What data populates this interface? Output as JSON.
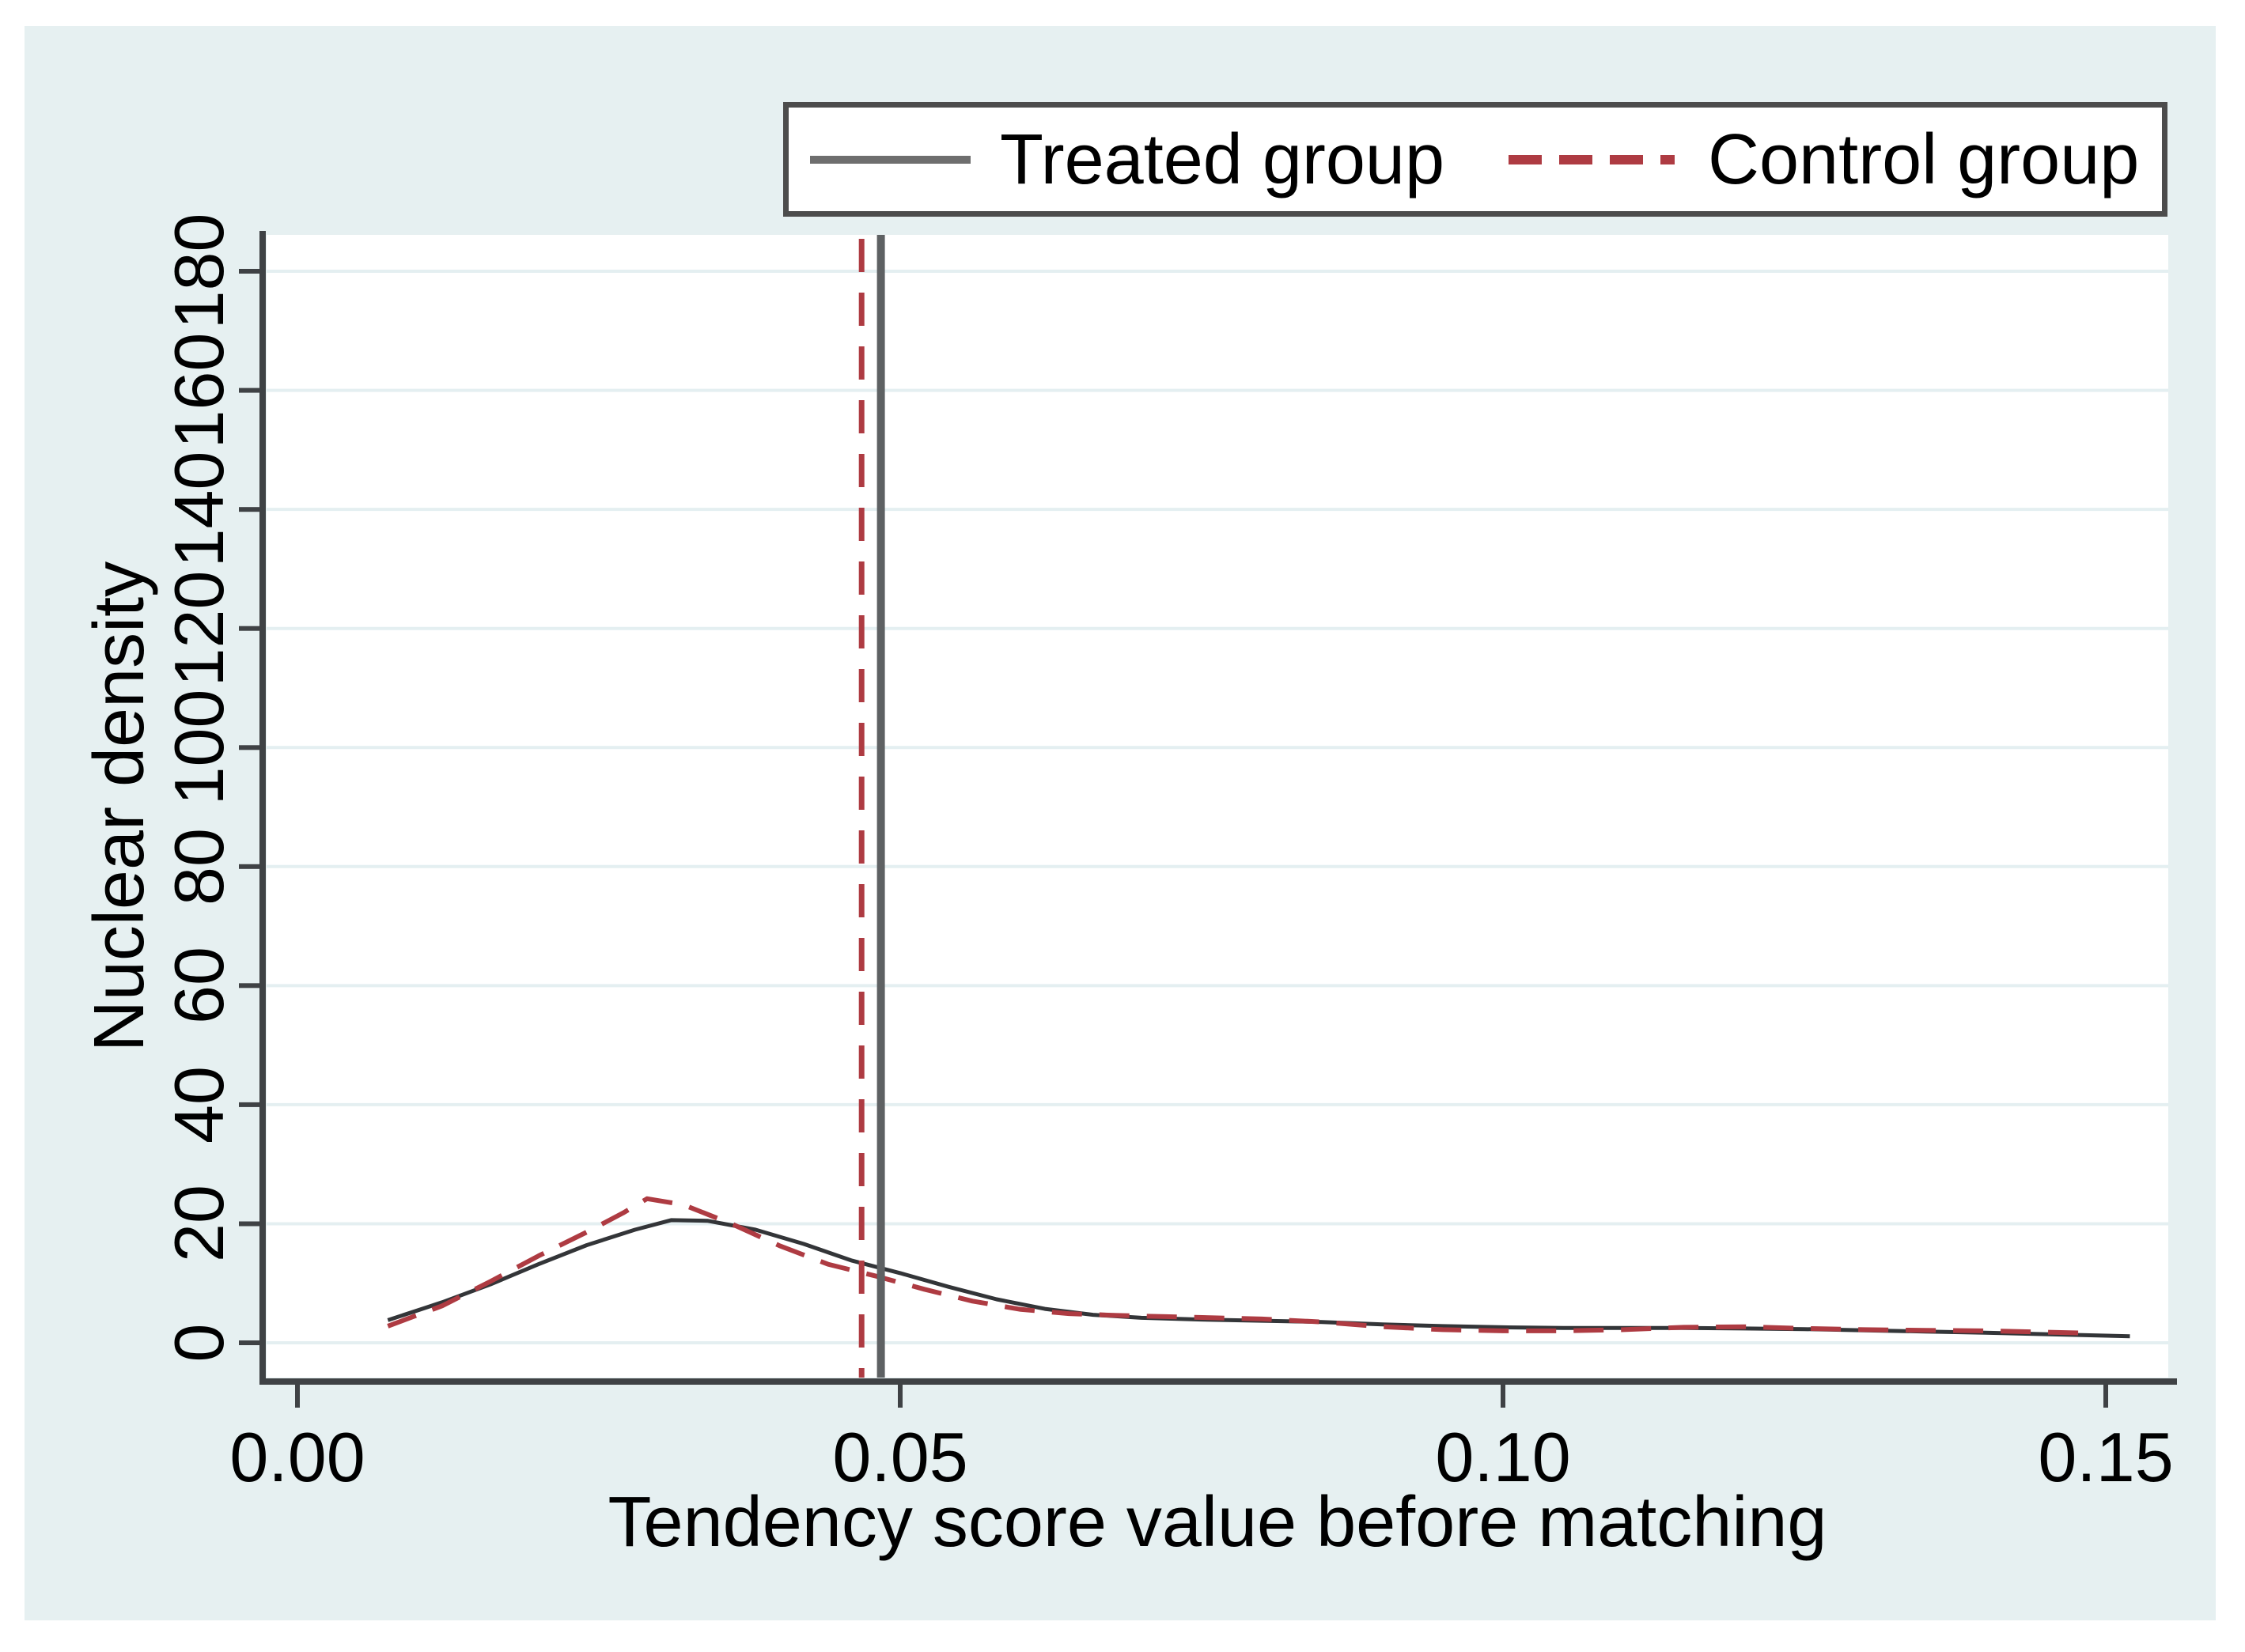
{
  "legend": {
    "items": [
      {
        "label": "Treated group",
        "line": "solid",
        "color": "#6e6e6e"
      },
      {
        "label": "Control group",
        "line": "dashed",
        "color": "#ae3b42"
      }
    ]
  },
  "colors": {
    "canvas_bg": "#e6f0f1",
    "plot_bg": "#ffffff",
    "axis": "#3f4245",
    "grid": "#e4eff1",
    "text": "#000000",
    "legend_border": "#4c4c4c"
  },
  "chart_data": {
    "type": "line",
    "title": "",
    "xlabel": "Tendency score value before matching",
    "ylabel": "Nuclear density",
    "xlim": [
      0,
      0.156
    ],
    "ylim": [
      0,
      186
    ],
    "grid": "horizontal",
    "legend_position": "top",
    "x_ticks": [
      0,
      0.05,
      0.1,
      0.15
    ],
    "x_tick_labels": [
      "0.00",
      "0.05",
      "0.10",
      "0.15"
    ],
    "y_ticks": [
      0,
      20,
      40,
      60,
      80,
      100,
      120,
      140,
      160,
      180
    ],
    "series": [
      {
        "name": "Treated group",
        "style": "solid",
        "color": "#333538",
        "x": [
          0.0075,
          0.012,
          0.016,
          0.02,
          0.024,
          0.028,
          0.031,
          0.034,
          0.038,
          0.042,
          0.046,
          0.05,
          0.054,
          0.058,
          0.062,
          0.066,
          0.07,
          0.075,
          0.08,
          0.085,
          0.09,
          0.095,
          0.1,
          0.105,
          0.11,
          0.115,
          0.12,
          0.125,
          0.13,
          0.135,
          0.14,
          0.146,
          0.152
        ],
        "y": [
          3.8,
          6.8,
          9.8,
          13.2,
          16.4,
          19.0,
          20.6,
          20.5,
          19.0,
          16.6,
          13.8,
          11.7,
          9.4,
          7.3,
          5.7,
          4.7,
          4.2,
          3.9,
          3.7,
          3.5,
          3.1,
          2.8,
          2.6,
          2.5,
          2.5,
          2.5,
          2.4,
          2.3,
          2.1,
          1.9,
          1.7,
          1.4,
          1.1
        ]
      },
      {
        "name": "Control group",
        "style": "dashed",
        "color": "#ae3b42",
        "x": [
          0.0075,
          0.012,
          0.016,
          0.02,
          0.024,
          0.027,
          0.029,
          0.032,
          0.036,
          0.04,
          0.044,
          0.048,
          0.052,
          0.056,
          0.06,
          0.064,
          0.068,
          0.072,
          0.076,
          0.08,
          0.085,
          0.09,
          0.095,
          0.1,
          0.105,
          0.11,
          0.115,
          0.12,
          0.125,
          0.13,
          0.135,
          0.14,
          0.145,
          0.149
        ],
        "y": [
          2.8,
          6.2,
          10.3,
          14.6,
          18.6,
          21.8,
          24.2,
          23.2,
          20.0,
          16.3,
          13.2,
          11.2,
          9.0,
          7.0,
          5.6,
          4.9,
          4.6,
          4.4,
          4.2,
          4.0,
          3.5,
          2.7,
          2.2,
          2.0,
          2.0,
          2.2,
          2.6,
          2.7,
          2.4,
          2.2,
          2.1,
          2.0,
          1.8,
          1.6
        ]
      }
    ],
    "vlines": [
      {
        "x": 0.0468,
        "style": "dashed",
        "color": "#ae3b42",
        "name": "control-mean-line"
      },
      {
        "x": 0.0484,
        "style": "solid",
        "color": "#5e6163",
        "name": "treated-mean-line"
      }
    ]
  }
}
